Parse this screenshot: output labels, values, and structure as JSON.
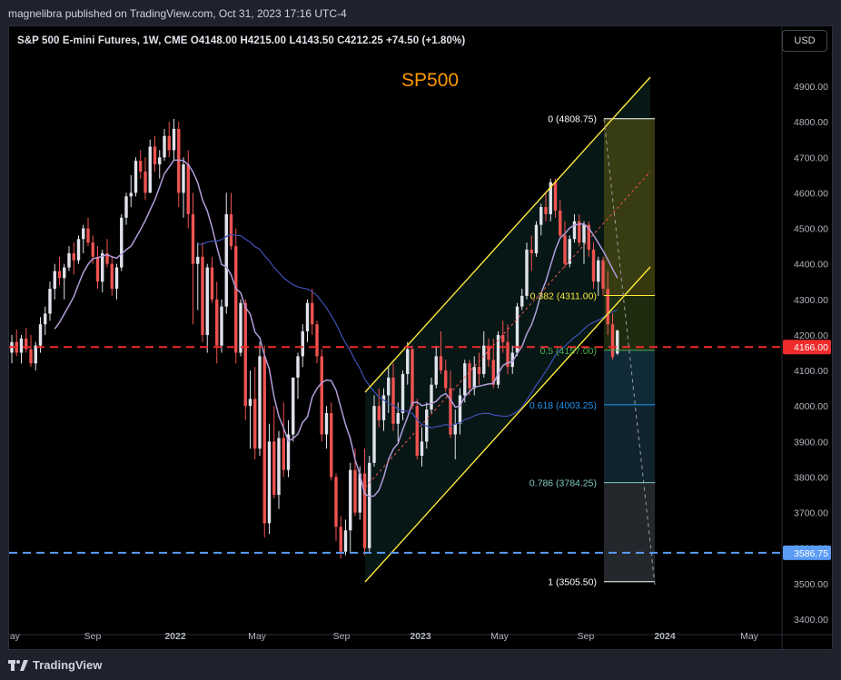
{
  "publisher": "magnelibra published on TradingView.com, Oct 31, 2023 17:16 UTC-4",
  "symbol_line": "S&P 500 E-mini Futures, 1W, CME  O4148.00  H4215.00  L4143.50  C4212.25  +74.50 (+1.80%)",
  "currency": "USD",
  "chart_title": "SP500",
  "footer_logo": "TradingView",
  "colors": {
    "up": "#e0e3eb",
    "down": "#ef5350",
    "ma_fast": "#b39ddb",
    "ma_slow": "#3f51b5",
    "channel": "#ffeb3b",
    "support_line": "#ef2b2b",
    "support2_line": "#5b9cf6",
    "title": "#ff9800"
  },
  "chart_data": {
    "type": "candlestick",
    "y_range": [
      3400,
      4950
    ],
    "y_ticks": [
      "4900.00",
      "4800.00",
      "4700.00",
      "4600.00",
      "4500.00",
      "4400.00",
      "4300.00",
      "4200.00",
      "4100.00",
      "4000.00",
      "3900.00",
      "3800.00",
      "3700.00",
      "3600.00",
      "3500.00",
      "3400.00"
    ],
    "x_ticks": [
      "May",
      "Sep",
      "2022",
      "May",
      "Sep",
      "2023",
      "May",
      "Sep",
      "2024",
      "May"
    ],
    "price_labels": [
      {
        "text": "4166.00",
        "value": 4166,
        "color": "#ef2b2b"
      },
      {
        "text": "3586.75",
        "value": 3586.75,
        "color": "#5b9cf6"
      }
    ],
    "fib_levels": [
      {
        "label": "0 (4808.75)",
        "value": 4808.75
      },
      {
        "label": "0.382 (4311.00)",
        "value": 4311
      },
      {
        "label": "0.5 (4157.00)",
        "value": 4157
      },
      {
        "label": "0.618 (4003.25)",
        "value": 4003.25
      },
      {
        "label": "0.786 (3784.25)",
        "value": 3784.25
      },
      {
        "label": "1 (3505.50)",
        "value": 3505.5
      }
    ],
    "ohlc": [
      [
        4150,
        4200,
        4120,
        4180
      ],
      [
        4180,
        4215,
        4140,
        4150
      ],
      [
        4150,
        4200,
        4120,
        4190
      ],
      [
        4190,
        4220,
        4150,
        4160
      ],
      [
        4160,
        4200,
        4110,
        4120
      ],
      [
        4120,
        4180,
        4100,
        4170
      ],
      [
        4170,
        4250,
        4150,
        4230
      ],
      [
        4230,
        4280,
        4200,
        4260
      ],
      [
        4260,
        4350,
        4240,
        4330
      ],
      [
        4330,
        4400,
        4300,
        4380
      ],
      [
        4380,
        4420,
        4340,
        4360
      ],
      [
        4360,
        4400,
        4300,
        4390
      ],
      [
        4390,
        4450,
        4380,
        4430
      ],
      [
        4430,
        4460,
        4370,
        4410
      ],
      [
        4410,
        4480,
        4400,
        4470
      ],
      [
        4470,
        4510,
        4430,
        4500
      ],
      [
        4500,
        4530,
        4450,
        4460
      ],
      [
        4460,
        4480,
        4400,
        4420
      ],
      [
        4420,
        4450,
        4330,
        4350
      ],
      [
        4350,
        4440,
        4320,
        4430
      ],
      [
        4430,
        4470,
        4390,
        4400
      ],
      [
        4400,
        4420,
        4310,
        4330
      ],
      [
        4330,
        4400,
        4300,
        4390
      ],
      [
        4390,
        4540,
        4380,
        4530
      ],
      [
        4530,
        4600,
        4510,
        4590
      ],
      [
        4590,
        4650,
        4560,
        4600
      ],
      [
        4600,
        4700,
        4590,
        4690
      ],
      [
        4690,
        4720,
        4640,
        4660
      ],
      [
        4660,
        4700,
        4580,
        4600
      ],
      [
        4600,
        4750,
        4600,
        4730
      ],
      [
        4730,
        4760,
        4660,
        4680
      ],
      [
        4680,
        4720,
        4640,
        4700
      ],
      [
        4700,
        4780,
        4690,
        4760
      ],
      [
        4760,
        4800,
        4700,
        4720
      ],
      [
        4720,
        4808,
        4690,
        4780
      ],
      [
        4780,
        4800,
        4560,
        4600
      ],
      [
        4600,
        4700,
        4530,
        4680
      ],
      [
        4680,
        4720,
        4500,
        4540
      ],
      [
        4540,
        4600,
        4230,
        4400
      ],
      [
        4400,
        4460,
        4270,
        4420
      ],
      [
        4420,
        4460,
        4180,
        4200
      ],
      [
        4200,
        4400,
        4150,
        4390
      ],
      [
        4390,
        4420,
        4290,
        4300
      ],
      [
        4300,
        4350,
        4120,
        4170
      ],
      [
        4170,
        4300,
        4150,
        4280
      ],
      [
        4280,
        4600,
        4260,
        4540
      ],
      [
        4540,
        4600,
        4440,
        4450
      ],
      [
        4450,
        4500,
        4120,
        4150
      ],
      [
        4150,
        4300,
        4140,
        4290
      ],
      [
        4290,
        4300,
        3960,
        4000
      ],
      [
        4000,
        4100,
        3880,
        4020
      ],
      [
        4020,
        4110,
        3850,
        3880
      ],
      [
        3880,
        4180,
        3860,
        4140
      ],
      [
        4140,
        4170,
        3630,
        3670
      ],
      [
        3670,
        3950,
        3640,
        3900
      ],
      [
        3900,
        4000,
        3740,
        3750
      ],
      [
        3750,
        3930,
        3710,
        3910
      ],
      [
        3910,
        4010,
        3800,
        3820
      ],
      [
        3820,
        3960,
        3800,
        3920
      ],
      [
        3920,
        4080,
        3900,
        4080
      ],
      [
        4080,
        4150,
        4020,
        4140
      ],
      [
        4140,
        4230,
        4110,
        4210
      ],
      [
        4210,
        4300,
        4180,
        4290
      ],
      [
        4290,
        4330,
        4200,
        4230
      ],
      [
        4230,
        4240,
        4120,
        4140
      ],
      [
        4140,
        4160,
        3900,
        3920
      ],
      [
        3920,
        4000,
        3880,
        3980
      ],
      [
        3980,
        4010,
        3790,
        3800
      ],
      [
        3800,
        3810,
        3620,
        3660
      ],
      [
        3660,
        3690,
        3570,
        3590
      ],
      [
        3590,
        3680,
        3580,
        3650
      ],
      [
        3650,
        3840,
        3590,
        3820
      ],
      [
        3820,
        3880,
        3690,
        3700
      ],
      [
        3700,
        3830,
        3680,
        3810
      ],
      [
        3810,
        3880,
        3580,
        3600
      ],
      [
        3600,
        3860,
        3590,
        3840
      ],
      [
        3840,
        4030,
        3830,
        4000
      ],
      [
        4000,
        4050,
        3940,
        3960
      ],
      [
        3960,
        4050,
        3930,
        4030
      ],
      [
        4030,
        4110,
        3980,
        4080
      ],
      [
        4080,
        4120,
        3930,
        3950
      ],
      [
        3950,
        4010,
        3900,
        3980
      ],
      [
        3980,
        4100,
        3960,
        4090
      ],
      [
        4090,
        4180,
        4060,
        4160
      ],
      [
        4160,
        4170,
        3990,
        4000
      ],
      [
        4000,
        4020,
        3850,
        3860
      ],
      [
        3860,
        3940,
        3830,
        3900
      ],
      [
        3900,
        4010,
        3880,
        3990
      ],
      [
        3990,
        4080,
        3980,
        4060
      ],
      [
        4060,
        4170,
        4050,
        4140
      ],
      [
        4140,
        4210,
        4090,
        4100
      ],
      [
        4100,
        4130,
        4040,
        4050
      ],
      [
        4050,
        4100,
        3910,
        3920
      ],
      [
        3920,
        3990,
        3850,
        3950
      ],
      [
        3950,
        4050,
        3920,
        4030
      ],
      [
        4030,
        4130,
        4010,
        4120
      ],
      [
        4120,
        4130,
        4030,
        4050
      ],
      [
        4050,
        4140,
        4030,
        4110
      ],
      [
        4110,
        4150,
        4060,
        4090
      ],
      [
        4090,
        4210,
        4080,
        4170
      ],
      [
        4170,
        4190,
        4110,
        4130
      ],
      [
        4130,
        4190,
        4050,
        4060
      ],
      [
        4060,
        4210,
        4050,
        4200
      ],
      [
        4200,
        4240,
        4150,
        4180
      ],
      [
        4180,
        4230,
        4090,
        4110
      ],
      [
        4110,
        4170,
        4090,
        4150
      ],
      [
        4150,
        4290,
        4140,
        4280
      ],
      [
        4280,
        4330,
        4270,
        4310
      ],
      [
        4310,
        4460,
        4300,
        4440
      ],
      [
        4440,
        4480,
        4380,
        4430
      ],
      [
        4430,
        4520,
        4420,
        4510
      ],
      [
        4510,
        4570,
        4480,
        4560
      ],
      [
        4560,
        4600,
        4520,
        4540
      ],
      [
        4540,
        4640,
        4520,
        4630
      ],
      [
        4630,
        4640,
        4530,
        4550
      ],
      [
        4550,
        4580,
        4470,
        4480
      ],
      [
        4480,
        4520,
        4390,
        4400
      ],
      [
        4400,
        4480,
        4390,
        4470
      ],
      [
        4470,
        4540,
        4460,
        4520
      ],
      [
        4520,
        4540,
        4450,
        4460
      ],
      [
        4460,
        4520,
        4400,
        4510
      ],
      [
        4510,
        4520,
        4420,
        4440
      ],
      [
        4440,
        4460,
        4330,
        4350
      ],
      [
        4350,
        4420,
        4310,
        4410
      ],
      [
        4410,
        4420,
        4310,
        4330
      ],
      [
        4330,
        4380,
        4200,
        4230
      ],
      [
        4230,
        4260,
        4130,
        4137.75
      ],
      [
        4148,
        4215,
        4143.5,
        4212.25
      ]
    ]
  }
}
